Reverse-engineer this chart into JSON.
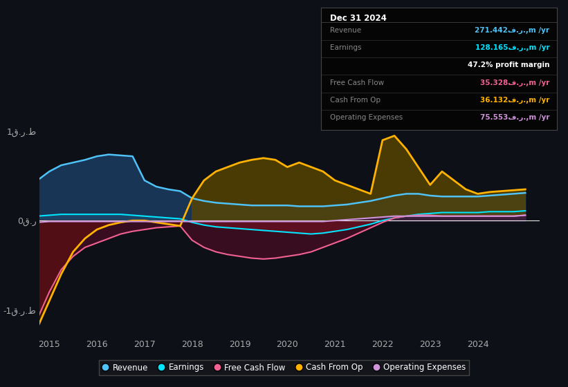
{
  "bg_color": "#0d1117",
  "xlim": [
    2014.8,
    2025.3
  ],
  "ylim": [
    -1.3,
    1.3
  ],
  "yticks": [
    -1.0,
    0.0,
    1.0
  ],
  "ytick_labels": [
    "-1ق.ر.ط",
    "0ق.ر",
    "1ق.ر.ط"
  ],
  "xticks": [
    2015,
    2016,
    2017,
    2018,
    2019,
    2020,
    2021,
    2022,
    2023,
    2024
  ],
  "years": [
    2014.75,
    2015.0,
    2015.25,
    2015.5,
    2015.75,
    2016.0,
    2016.25,
    2016.5,
    2016.75,
    2017.0,
    2017.25,
    2017.5,
    2017.75,
    2018.0,
    2018.25,
    2018.5,
    2018.75,
    2019.0,
    2019.25,
    2019.5,
    2019.75,
    2020.0,
    2020.25,
    2020.5,
    2020.75,
    2021.0,
    2021.25,
    2021.5,
    2021.75,
    2022.0,
    2022.25,
    2022.5,
    2022.75,
    2023.0,
    2023.25,
    2023.5,
    2023.75,
    2024.0,
    2024.25,
    2024.5,
    2024.75,
    2025.0
  ],
  "revenue": [
    0.45,
    0.55,
    0.62,
    0.65,
    0.68,
    0.72,
    0.74,
    0.73,
    0.72,
    0.45,
    0.38,
    0.35,
    0.33,
    0.25,
    0.22,
    0.2,
    0.19,
    0.18,
    0.17,
    0.17,
    0.17,
    0.17,
    0.16,
    0.16,
    0.16,
    0.17,
    0.18,
    0.2,
    0.22,
    0.25,
    0.28,
    0.3,
    0.3,
    0.28,
    0.27,
    0.27,
    0.27,
    0.27,
    0.28,
    0.29,
    0.3,
    0.31
  ],
  "earnings": [
    0.05,
    0.06,
    0.07,
    0.07,
    0.07,
    0.07,
    0.07,
    0.07,
    0.06,
    0.05,
    0.04,
    0.03,
    0.02,
    -0.02,
    -0.05,
    -0.07,
    -0.08,
    -0.09,
    -0.1,
    -0.11,
    -0.12,
    -0.13,
    -0.14,
    -0.15,
    -0.14,
    -0.12,
    -0.1,
    -0.07,
    -0.04,
    0.0,
    0.03,
    0.05,
    0.07,
    0.08,
    0.09,
    0.09,
    0.09,
    0.09,
    0.1,
    0.1,
    0.1,
    0.11
  ],
  "free_cash_flow": [
    -1.1,
    -0.8,
    -0.55,
    -0.4,
    -0.3,
    -0.25,
    -0.2,
    -0.15,
    -0.12,
    -0.1,
    -0.08,
    -0.07,
    -0.06,
    -0.22,
    -0.3,
    -0.35,
    -0.38,
    -0.4,
    -0.42,
    -0.43,
    -0.42,
    -0.4,
    -0.38,
    -0.35,
    -0.3,
    -0.25,
    -0.2,
    -0.14,
    -0.08,
    -0.02,
    0.03,
    0.05,
    0.06,
    0.06,
    0.05,
    0.05,
    0.05,
    0.05,
    0.05,
    0.05,
    0.05,
    0.06
  ],
  "cash_from_op": [
    -1.2,
    -0.9,
    -0.6,
    -0.35,
    -0.2,
    -0.1,
    -0.05,
    -0.02,
    0.0,
    0.0,
    -0.02,
    -0.04,
    -0.06,
    0.25,
    0.45,
    0.55,
    0.6,
    0.65,
    0.68,
    0.7,
    0.68,
    0.6,
    0.65,
    0.6,
    0.55,
    0.45,
    0.4,
    0.35,
    0.3,
    0.9,
    0.95,
    0.8,
    0.6,
    0.4,
    0.55,
    0.45,
    0.35,
    0.3,
    0.32,
    0.33,
    0.34,
    0.35
  ],
  "op_expenses": [
    -0.02,
    -0.01,
    -0.01,
    -0.01,
    -0.01,
    -0.01,
    -0.01,
    -0.01,
    -0.01,
    -0.01,
    -0.01,
    -0.01,
    -0.01,
    -0.01,
    -0.01,
    -0.01,
    -0.01,
    -0.01,
    -0.01,
    -0.01,
    -0.01,
    -0.01,
    -0.01,
    -0.01,
    -0.01,
    0.0,
    0.01,
    0.02,
    0.03,
    0.04,
    0.05,
    0.05,
    0.05,
    0.05,
    0.05,
    0.05,
    0.05,
    0.05,
    0.05,
    0.05,
    0.05,
    0.06
  ],
  "revenue_color": "#4fc3f7",
  "earnings_color": "#00e5ff",
  "fcf_color": "#f06292",
  "cashop_color": "#ffb300",
  "opex_color": "#ce93d8",
  "zero_line_color": "#ffffff",
  "table_date": "Dec 31 2024",
  "table_rows": [
    {
      "label": "Revenue",
      "value": "271.442ف.ر.,m /yr",
      "color": "#4fc3f7",
      "label_color": "#888888"
    },
    {
      "label": "Earnings",
      "value": "128.165ف.ر.,m /yr",
      "color": "#00e5ff",
      "label_color": "#888888"
    },
    {
      "label": "",
      "value": "47.2% profit margin",
      "color": "#ffffff",
      "label_color": "#888888"
    },
    {
      "label": "Free Cash Flow",
      "value": "35.328ف.ر.,m /yr",
      "color": "#f06292",
      "label_color": "#888888"
    },
    {
      "label": "Cash From Op",
      "value": "36.132ف.ر.,m /yr",
      "color": "#ffb300",
      "label_color": "#888888"
    },
    {
      "label": "Operating Expenses",
      "value": "75.553ف.ر.,m /yr",
      "color": "#ce93d8",
      "label_color": "#888888"
    }
  ],
  "legend_entries": [
    {
      "label": "Revenue",
      "color": "#4fc3f7"
    },
    {
      "label": "Earnings",
      "color": "#00e5ff"
    },
    {
      "label": "Free Cash Flow",
      "color": "#f06292"
    },
    {
      "label": "Cash From Op",
      "color": "#ffb300"
    },
    {
      "label": "Operating Expenses",
      "color": "#ce93d8"
    }
  ]
}
